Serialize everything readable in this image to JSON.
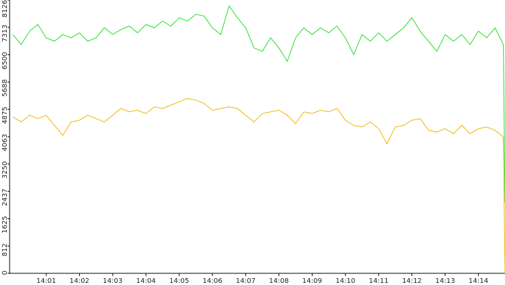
{
  "chart_data": {
    "type": "line",
    "x": [
      0,
      0.25,
      0.5,
      0.75,
      1,
      1.25,
      1.5,
      1.75,
      2,
      2.25,
      2.5,
      2.75,
      3,
      3.25,
      3.5,
      3.75,
      4,
      4.25,
      4.5,
      4.75,
      5,
      5.25,
      5.5,
      5.75,
      6,
      6.25,
      6.5,
      6.75,
      7,
      7.25,
      7.5,
      7.75,
      8,
      8.25,
      8.5,
      8.75,
      9,
      9.25,
      9.5,
      9.75,
      10,
      10.25,
      10.5,
      10.75,
      11,
      11.25,
      11.5,
      11.75,
      12,
      12.25,
      12.5,
      12.75,
      13,
      13.25,
      13.5,
      13.75,
      14,
      14.25,
      14.5,
      14.75,
      14.8
    ],
    "series": [
      {
        "color": "#22dd22",
        "values": [
          7100,
          6800,
          7200,
          7400,
          7000,
          6900,
          7100,
          7000,
          7150,
          6900,
          7000,
          7300,
          7100,
          7250,
          7350,
          7150,
          7400,
          7300,
          7500,
          7350,
          7600,
          7500,
          7700,
          7650,
          7300,
          7100,
          7950,
          7600,
          7300,
          6700,
          6600,
          7000,
          6700,
          6300,
          7000,
          7300,
          7100,
          7300,
          7150,
          7350,
          7000,
          6500,
          7100,
          6900,
          7150,
          6900,
          7100,
          7300,
          7600,
          7200,
          6900,
          6600,
          7100,
          6900,
          7100,
          6800,
          7200,
          7000,
          7300,
          6800,
          2100
        ]
      },
      {
        "color": "#f0b400",
        "values": [
          4650,
          4500,
          4700,
          4600,
          4700,
          4400,
          4100,
          4500,
          4550,
          4700,
          4600,
          4500,
          4700,
          4900,
          4800,
          4850,
          4750,
          4950,
          4900,
          5000,
          5100,
          5200,
          5150,
          5050,
          4850,
          4900,
          4950,
          4900,
          4700,
          4500,
          4750,
          4800,
          4850,
          4700,
          4450,
          4800,
          4750,
          4850,
          4800,
          4900,
          4550,
          4400,
          4350,
          4500,
          4300,
          3850,
          4350,
          4400,
          4550,
          4600,
          4250,
          4200,
          4300,
          4150,
          4400,
          4150,
          4300,
          4350,
          4250,
          4050,
          0
        ]
      }
    ],
    "xlim": [
      -0.1,
      14.8
    ],
    "xticks": [
      {
        "value": 1,
        "label": "14:01"
      },
      {
        "value": 2,
        "label": "14:02"
      },
      {
        "value": 3,
        "label": "14:03"
      },
      {
        "value": 4,
        "label": "14:04"
      },
      {
        "value": 5,
        "label": "14:05"
      },
      {
        "value": 6,
        "label": "14:06"
      },
      {
        "value": 7,
        "label": "14:07"
      },
      {
        "value": 8,
        "label": "14:08"
      },
      {
        "value": 9,
        "label": "14:09"
      },
      {
        "value": 10,
        "label": "14:10"
      },
      {
        "value": 11,
        "label": "14:11"
      },
      {
        "value": 12,
        "label": "14:12"
      },
      {
        "value": 13,
        "label": "14:13"
      },
      {
        "value": 14,
        "label": "14:14"
      }
    ],
    "ylim": [
      0,
      8126
    ],
    "yticks": [
      0,
      812,
      1625,
      2437,
      3250,
      4063,
      4875,
      5688,
      6500,
      7313,
      8126
    ]
  }
}
